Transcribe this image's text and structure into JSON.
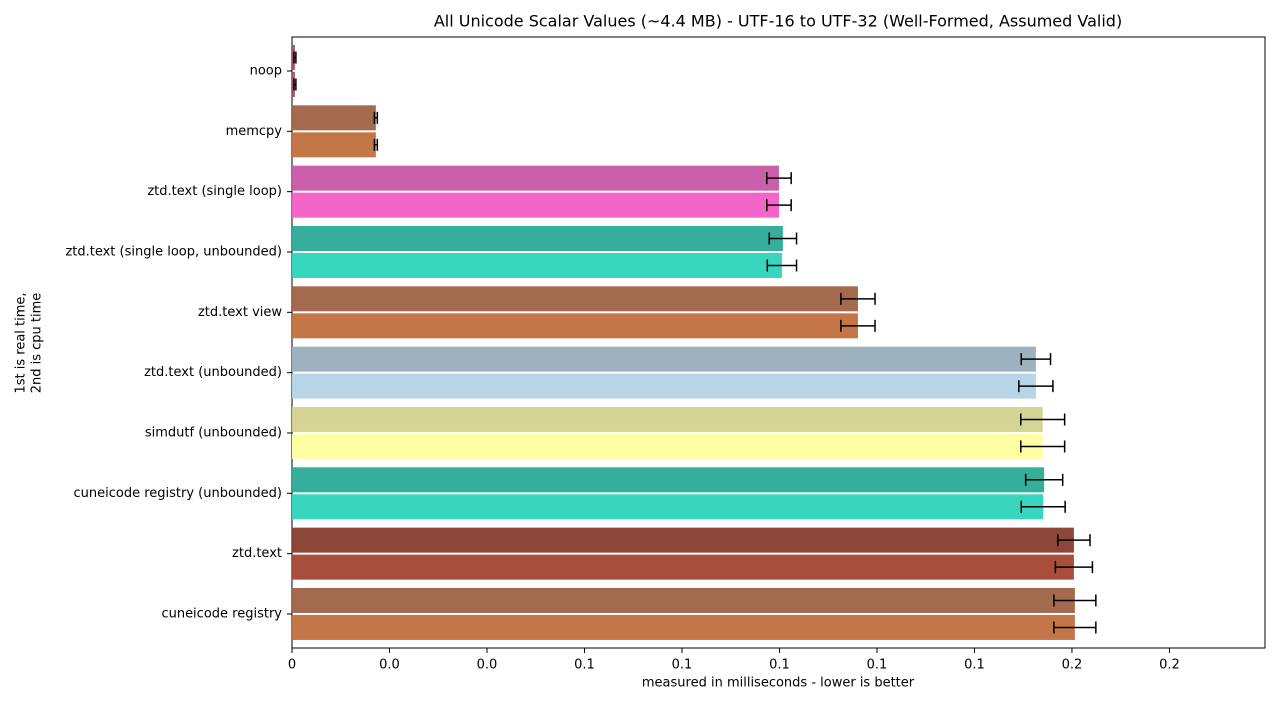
{
  "chart_data": {
    "type": "hbar_pairs",
    "title": "All Unicode Scalar Values (~4.4 MB) - UTF-16 to UTF-32 (Well-Formed, Assumed Valid)",
    "xlabel": "measured in milliseconds - lower is better",
    "ylabel_lines": [
      "1st is real time,",
      "2nd is cpu time"
    ],
    "categories": [
      "noop",
      "memcpy",
      "ztd.text (single loop)",
      "ztd.text (single loop, unbounded)",
      "ztd.text view",
      "ztd.text (unbounded)",
      "simdutf (unbounded)",
      "cuneicode registry (unbounded)",
      "ztd.text",
      "cuneicode registry"
    ],
    "series": [
      {
        "values": [
          0.0006,
          0.0172,
          0.0999,
          0.1007,
          0.1161,
          0.1526,
          0.154,
          0.1543,
          0.1604,
          0.1606
        ],
        "errors": [
          0.0002,
          0.0003,
          0.0025,
          0.0028,
          0.0035,
          0.003,
          0.0045,
          0.0038,
          0.0033,
          0.0043
        ],
        "colors": [
          "#a0526d",
          "#9e6243",
          "#c857a5",
          "#2aaa96",
          "#9e6243",
          "#98aebb",
          "#d4d28e",
          "#2aaa96",
          "#873d2e",
          "#9e6243"
        ]
      },
      {
        "values": [
          0.0006,
          0.0172,
          0.0999,
          0.1005,
          0.1161,
          0.1526,
          0.154,
          0.1541,
          0.1604,
          0.1606
        ],
        "errors": [
          0.0002,
          0.0003,
          0.0025,
          0.003,
          0.0035,
          0.0035,
          0.0045,
          0.0045,
          0.0038,
          0.0043
        ],
        "colors": [
          "#a0526d",
          "#c0703f",
          "#f35dc6",
          "#2dd4bb",
          "#c0703f",
          "#b3d3e6",
          "#fefea0",
          "#2dd4bb",
          "#a34433",
          "#c0703f"
        ]
      }
    ],
    "xlim": [
      0,
      0.1996
    ],
    "xticks": [
      0,
      {
        "value": 0.02,
        "label": "0.0"
      },
      {
        "value": 0.04,
        "label": "0.0"
      },
      {
        "value": 0.06,
        "label": "0.1"
      },
      {
        "value": 0.08,
        "label": "0.1"
      },
      0.1,
      {
        "value": 0.12,
        "label": "0.1"
      },
      {
        "value": 0.14,
        "label": "0.1"
      },
      {
        "value": 0.16,
        "label": "0.2"
      },
      {
        "value": 0.18,
        "label": "0.2"
      }
    ]
  }
}
